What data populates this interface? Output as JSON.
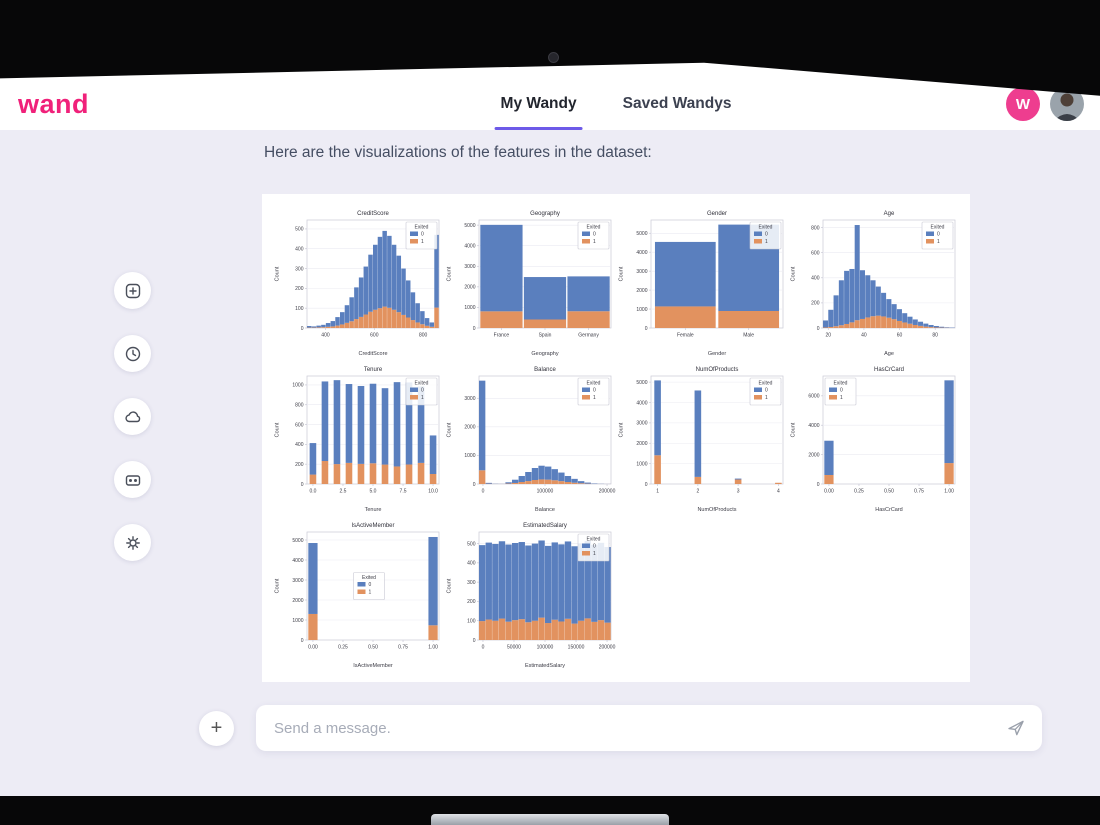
{
  "header": {
    "logo": "wand",
    "tabs": [
      {
        "label": "My Wandy",
        "active": true
      },
      {
        "label": "Saved Wandys",
        "active": false
      }
    ],
    "avatar_initial": "W"
  },
  "message": {
    "text": "Here are the visualizations of the features in the dataset:"
  },
  "sidebar": {
    "items": [
      {
        "icon": "new-wandy-icon"
      },
      {
        "icon": "history-icon"
      },
      {
        "icon": "cloud-icon"
      },
      {
        "icon": "bot-icon"
      },
      {
        "icon": "settings-icon"
      }
    ]
  },
  "composer": {
    "placeholder": "Send a message.",
    "plus_label": "+",
    "send_icon": "paper-plane-icon"
  },
  "colors": {
    "brand_pink": "#f0217a",
    "accent_purple": "#6d5ae8",
    "content_bg": "#edecf5",
    "header_bg": "#ffffff"
  },
  "chart_style": {
    "legend_title": "Exited",
    "series": [
      {
        "label": "0",
        "color": "#5a7fbe"
      },
      {
        "label": "1",
        "color": "#e2925f"
      }
    ],
    "grid_color": "#ebebf2",
    "axis_color": "#c9c9d6",
    "text_color": "#3b3b45"
  },
  "chart_data": [
    {
      "type": "histogram",
      "title": "CreditScore",
      "xlabel": "CreditScore",
      "ylabel": "Count",
      "ymax": 545,
      "yticks": [
        0,
        100,
        200,
        300,
        400,
        500
      ],
      "xticks": [
        {
          "p": 0.14,
          "l": "400"
        },
        {
          "p": 0.51,
          "l": "600"
        },
        {
          "p": 0.88,
          "l": "800"
        }
      ],
      "legend_pos": "ne",
      "exited_0": [
        8,
        6,
        9,
        12,
        19,
        27,
        43,
        62,
        89,
        121,
        160,
        199,
        242,
        288,
        328,
        360,
        382,
        363,
        328,
        285,
        234,
        187,
        140,
        97,
        66,
        39,
        22,
        367
      ],
      "exited_1": [
        2,
        2,
        3,
        4,
        6,
        8,
        12,
        18,
        26,
        34,
        45,
        56,
        68,
        82,
        92,
        100,
        108,
        102,
        92,
        80,
        66,
        53,
        40,
        28,
        19,
        11,
        6,
        103
      ]
    },
    {
      "type": "bar",
      "title": "Geography",
      "xlabel": "Geography",
      "ylabel": "Count",
      "ymax": 5250,
      "yticks": [
        0,
        1000,
        2000,
        3000,
        4000,
        5000
      ],
      "centers": [
        0.17,
        0.5,
        0.83
      ],
      "bar_width": 0.32,
      "xticks": [
        {
          "p": 0.17,
          "l": "France"
        },
        {
          "p": 0.5,
          "l": "Spain"
        },
        {
          "p": 0.83,
          "l": "Germany"
        }
      ],
      "legend_pos": "ne",
      "exited_0": [
        4204,
        2064,
        1695
      ],
      "exited_1": [
        810,
        413,
        814
      ]
    },
    {
      "type": "bar",
      "title": "Gender",
      "xlabel": "Gender",
      "ylabel": "Count",
      "ymax": 5700,
      "yticks": [
        0,
        1000,
        2000,
        3000,
        4000,
        5000
      ],
      "centers": [
        0.26,
        0.74
      ],
      "bar_width": 0.46,
      "xticks": [
        {
          "p": 0.26,
          "l": "Female"
        },
        {
          "p": 0.74,
          "l": "Male"
        }
      ],
      "legend_pos": "ne",
      "exited_0": [
        3404,
        4559
      ],
      "exited_1": [
        1139,
        898
      ]
    },
    {
      "type": "histogram",
      "title": "Age",
      "xlabel": "Age",
      "ylabel": "Count",
      "ymax": 860,
      "yticks": [
        0,
        200,
        400,
        600,
        800
      ],
      "xticks": [
        {
          "p": 0.04,
          "l": "20"
        },
        {
          "p": 0.31,
          "l": "40"
        },
        {
          "p": 0.58,
          "l": "60"
        },
        {
          "p": 0.85,
          "l": "80"
        }
      ],
      "legend_pos": "ne",
      "exited_0": [
        56,
        137,
        246,
        358,
        423,
        425,
        758,
        388,
        336,
        286,
        232,
        188,
        148,
        120,
        94,
        74,
        56,
        44,
        33,
        24,
        17,
        12,
        7,
        4,
        3
      ],
      "exited_1": [
        4,
        8,
        14,
        22,
        32,
        45,
        62,
        72,
        84,
        94,
        98,
        92,
        82,
        70,
        56,
        44,
        34,
        24,
        17,
        11,
        7,
        4,
        3,
        2,
        1
      ]
    },
    {
      "type": "bar",
      "title": "Tenure",
      "xlabel": "Tenure",
      "ylabel": "Count",
      "ymax": 1090,
      "yticks": [
        0,
        200,
        400,
        600,
        800,
        1000
      ],
      "centers": [
        0.045,
        0.136,
        0.227,
        0.318,
        0.409,
        0.5,
        0.591,
        0.682,
        0.773,
        0.864,
        0.955
      ],
      "bar_width": 0.05,
      "xticks": [
        {
          "p": 0.045,
          "l": "0.0"
        },
        {
          "p": 0.2725,
          "l": "2.5"
        },
        {
          "p": 0.5,
          "l": "5.0"
        },
        {
          "p": 0.7275,
          "l": "7.5"
        },
        {
          "p": 0.955,
          "l": "10.0"
        }
      ],
      "legend_pos": "ne",
      "exited_0": [
        318,
        803,
        847,
        796,
        786,
        803,
        771,
        851,
        828,
        771,
        389
      ],
      "exited_1": [
        95,
        232,
        201,
        213,
        203,
        209,
        196,
        177,
        197,
        213,
        101
      ]
    },
    {
      "type": "histogram",
      "title": "Balance",
      "xlabel": "Balance",
      "ylabel": "Count",
      "ymax": 3780,
      "yticks": [
        0,
        1000,
        2000,
        3000
      ],
      "xticks": [
        {
          "p": 0.03,
          "l": "0"
        },
        {
          "p": 0.5,
          "l": "100000"
        },
        {
          "p": 0.97,
          "l": "200000"
        }
      ],
      "legend_pos": "ne",
      "exited_0": [
        3137,
        30,
        7,
        4,
        45,
        114,
        210,
        318,
        420,
        480,
        458,
        390,
        300,
        210,
        135,
        75,
        38,
        15,
        6,
        2
      ],
      "exited_1": [
        480,
        10,
        3,
        2,
        15,
        36,
        70,
        102,
        140,
        160,
        152,
        130,
        100,
        70,
        45,
        25,
        12,
        5,
        2,
        1
      ]
    },
    {
      "type": "bar",
      "title": "NumOfProducts",
      "xlabel": "NumOfProducts",
      "ylabel": "Count",
      "ymax": 5300,
      "yticks": [
        0,
        1000,
        2000,
        3000,
        4000,
        5000
      ],
      "centers": [
        0.05,
        0.355,
        0.66,
        0.965
      ],
      "bar_width": 0.05,
      "xticks": [
        {
          "p": 0.05,
          "l": "1"
        },
        {
          "p": 0.355,
          "l": "2"
        },
        {
          "p": 0.66,
          "l": "3"
        },
        {
          "p": 0.965,
          "l": "4"
        }
      ],
      "legend_pos": "ne",
      "exited_0": [
        3675,
        4242,
        46,
        0
      ],
      "exited_1": [
        1409,
        348,
        220,
        60
      ]
    },
    {
      "type": "bar",
      "title": "HasCrCard",
      "xlabel": "HasCrCard",
      "ylabel": "Count",
      "ymax": 7350,
      "yticks": [
        0,
        2000,
        4000,
        6000
      ],
      "centers": [
        0.045,
        0.955
      ],
      "bar_width": 0.07,
      "xticks": [
        {
          "p": 0.045,
          "l": "0.00"
        },
        {
          "p": 0.2725,
          "l": "0.25"
        },
        {
          "p": 0.5,
          "l": "0.50"
        },
        {
          "p": 0.7275,
          "l": "0.75"
        },
        {
          "p": 0.955,
          "l": "1.00"
        }
      ],
      "legend_pos": "nw",
      "exited_0": [
        2332,
        5631
      ],
      "exited_1": [
        613,
        1424
      ]
    },
    {
      "type": "bar",
      "title": "IsActiveMember",
      "xlabel": "IsActiveMember",
      "ylabel": "Count",
      "ymax": 5400,
      "yticks": [
        0,
        1000,
        2000,
        3000,
        4000,
        5000
      ],
      "centers": [
        0.045,
        0.955
      ],
      "bar_width": 0.07,
      "xticks": [
        {
          "p": 0.045,
          "l": "0.00"
        },
        {
          "p": 0.2725,
          "l": "0.25"
        },
        {
          "p": 0.5,
          "l": "0.50"
        },
        {
          "p": 0.7275,
          "l": "0.75"
        },
        {
          "p": 0.955,
          "l": "1.00"
        }
      ],
      "legend_pos": "c",
      "exited_0": [
        3547,
        4416
      ],
      "exited_1": [
        1302,
        735
      ]
    },
    {
      "type": "histogram",
      "title": "EstimatedSalary",
      "xlabel": "EstimatedSalary",
      "ylabel": "Count",
      "ymax": 560,
      "yticks": [
        0,
        100,
        200,
        300,
        400,
        500
      ],
      "xticks": [
        {
          "p": 0.03,
          "l": "0"
        },
        {
          "p": 0.265,
          "l": "50000"
        },
        {
          "p": 0.5,
          "l": "100000"
        },
        {
          "p": 0.735,
          "l": "150000"
        },
        {
          "p": 0.97,
          "l": "200000"
        }
      ],
      "legend_pos": "ne",
      "exited_0": [
        394,
        399,
        398,
        401,
        400,
        400,
        400,
        398,
        400,
        400,
        400,
        401,
        400,
        401,
        401,
        401,
        401,
        400,
        401,
        392
      ],
      "exited_1": [
        98,
        106,
        100,
        111,
        95,
        103,
        108,
        92,
        100,
        116,
        88,
        105,
        96,
        110,
        85,
        100,
        112,
        94,
        103,
        90
      ]
    }
  ]
}
